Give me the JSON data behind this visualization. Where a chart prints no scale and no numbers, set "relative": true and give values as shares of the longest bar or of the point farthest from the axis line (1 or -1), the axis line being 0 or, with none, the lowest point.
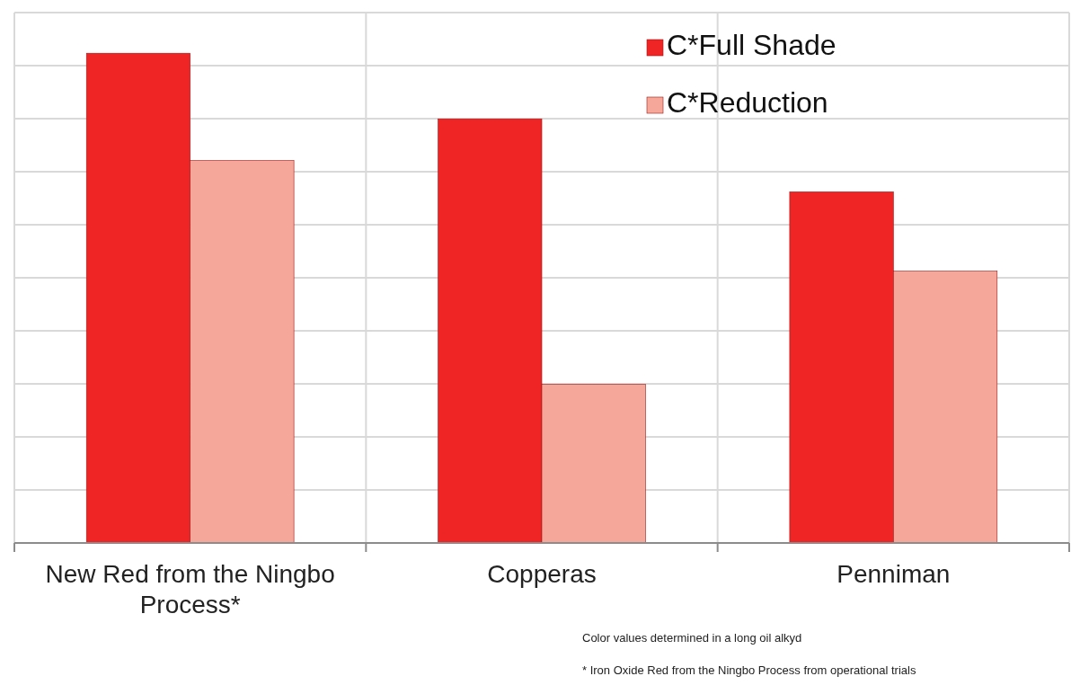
{
  "chart_data": {
    "type": "bar",
    "relative": true,
    "categories": [
      "New Red from the Ningbo Process*",
      "Copperas",
      "Penniman"
    ],
    "series": [
      {
        "name": "C*Full Shade",
        "color": "#ee2524",
        "values": [
          1,
          0.866,
          0.717
        ]
      },
      {
        "name": "C*Reduction",
        "color": "#f5a899",
        "values": [
          0.781,
          0.324,
          0.555
        ]
      }
    ],
    "grid": true,
    "legend": "top right",
    "annotations": [
      "Color values determined in a long oil alkyd",
      "* Iron Oxide Red  from the Ningbo Process  from operational trials"
    ]
  }
}
